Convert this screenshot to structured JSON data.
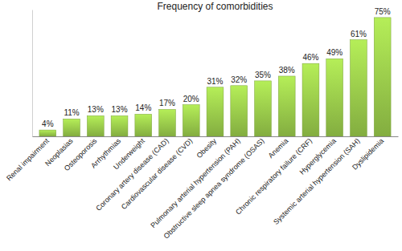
{
  "chart_data": {
    "type": "bar",
    "title": "Frequency of comorbidities",
    "categories": [
      "Renal impairment",
      "Neoplasias",
      "Osteoporosis",
      "Arrhythmias",
      "Underweight",
      "Coronary artery disease (CAD)",
      "Cardiovascular disease (CVD)",
      "Obesity",
      "Pulmonary arterial hypertension (PAH)",
      "Obstructive sleep apnea syndrome (OSAS)",
      "Anemia",
      "Chronic respiratory failure (CRF)",
      "Hyperglycemia",
      "Systemic arterial hypertension (SAH)",
      "Dyslipidemia"
    ],
    "values": [
      4,
      11,
      13,
      13,
      14,
      17,
      20,
      31,
      32,
      35,
      38,
      46,
      49,
      61,
      75
    ],
    "value_labels": [
      "4%",
      "11%",
      "13%",
      "13%",
      "14%",
      "17%",
      "20%",
      "31%",
      "32%",
      "35%",
      "38%",
      "46%",
      "49%",
      "61%",
      "75%"
    ],
    "color": "#92c047",
    "ylim": [
      0,
      80
    ],
    "data_labels": true,
    "tick_labels": "x",
    "grid": false
  }
}
